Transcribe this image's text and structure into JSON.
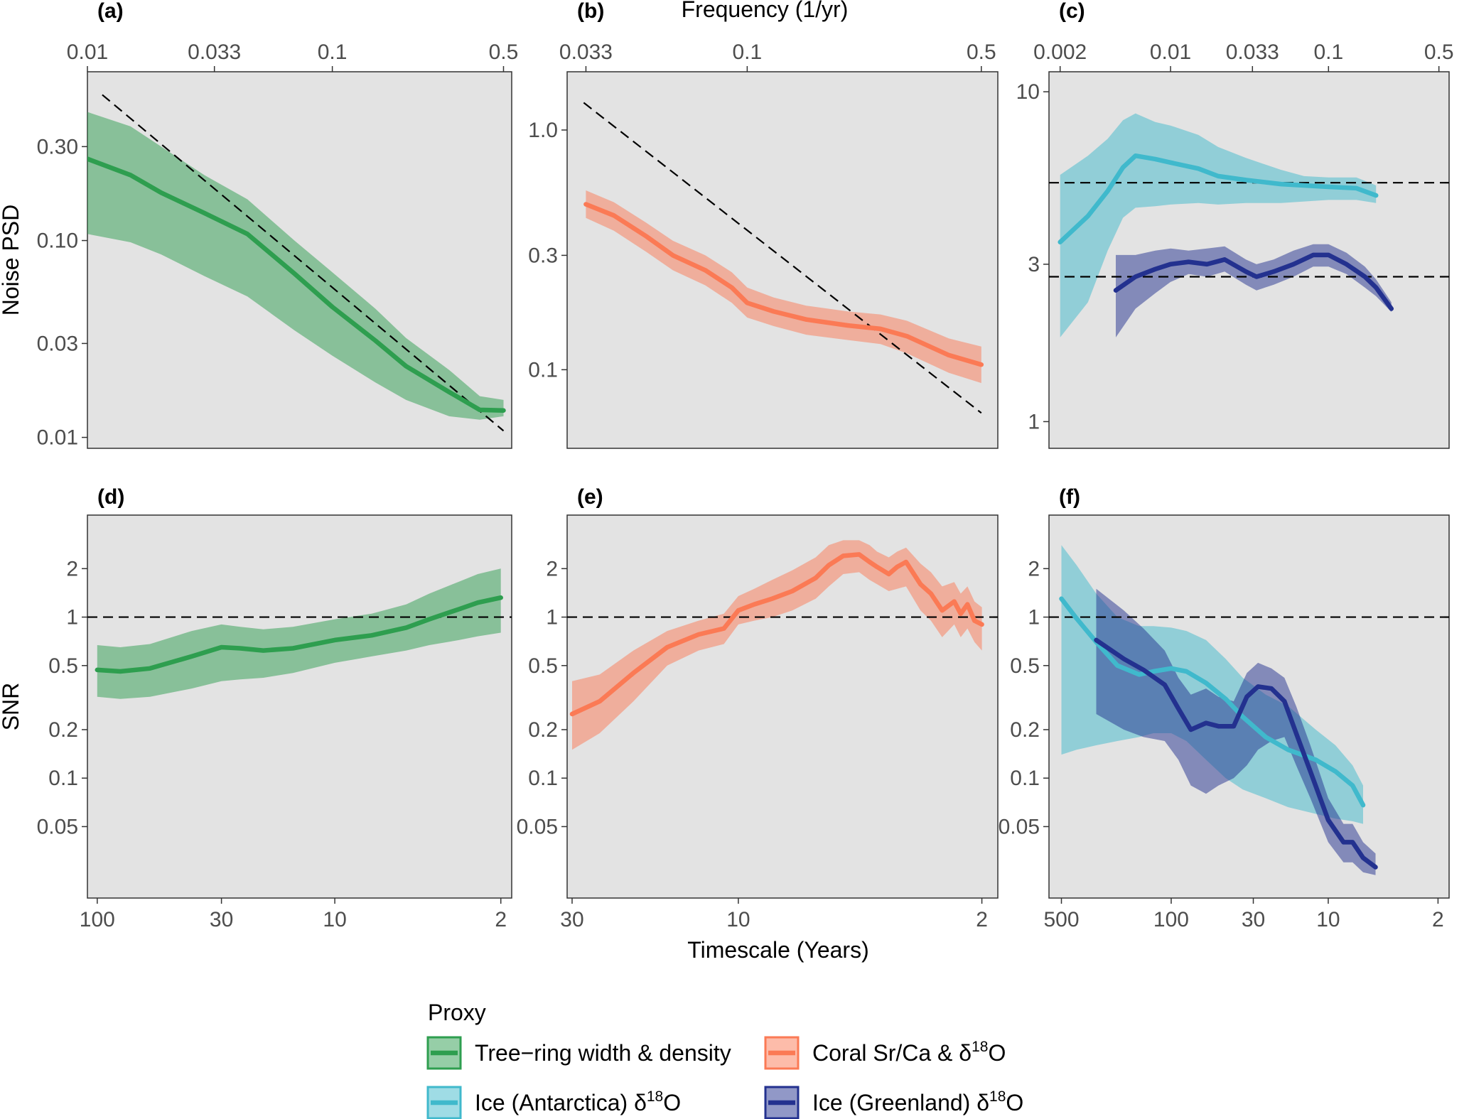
{
  "chart_data": {
    "type": "line",
    "top_axis_title": "Frequency (1/yr)",
    "bottom_axis_title": "Timescale (Years)",
    "colors": {
      "tree": "#2e9e4f",
      "coral": "#fb7a55",
      "ice_ant": "#40b9cc",
      "ice_gre": "#23318f",
      "panel_bg": "#e3e3e3",
      "reference_line": "#000000"
    },
    "legend": {
      "title": "Proxy",
      "items": [
        {
          "key": "tree",
          "label": "Tree−ring width & density",
          "sup": "",
          "tail": ""
        },
        {
          "key": "coral",
          "label": "Coral Sr/Ca & δ",
          "sup": "18",
          "tail": "O"
        },
        {
          "key": "ice_ant",
          "label": "Ice (Antarctica) δ",
          "sup": "18",
          "tail": "O"
        },
        {
          "key": "ice_gre",
          "label": "Ice (Greenland) δ",
          "sup": "18",
          "tail": "O"
        }
      ]
    },
    "panels": [
      {
        "tag": "(a)",
        "row": 0,
        "col": 0,
        "ylabel": "Noise PSD",
        "x_scale": "log",
        "y_scale": "log",
        "xlim": [
          0.01,
          0.54
        ],
        "ylim": [
          0.0088,
          0.72
        ],
        "x_ticks": [
          0.01,
          0.033,
          0.1,
          0.5
        ],
        "x_tick_labels": [
          "0.01",
          "0.033",
          "0.1",
          "0.5"
        ],
        "y_ticks": [
          0.3,
          0.1,
          0.03,
          0.01
        ],
        "y_tick_labels": [
          "0.30",
          "0.10",
          "0.03",
          "0.01"
        ],
        "reference_lines": [
          {
            "kind": "segment",
            "x": [
              0.0115,
              0.5
            ],
            "y": [
              0.55,
              0.0108
            ]
          }
        ],
        "series": [
          {
            "key": "tree",
            "x": [
              0.01,
              0.015,
              0.02,
              0.03,
              0.045,
              0.07,
              0.1,
              0.15,
              0.2,
              0.3,
              0.4,
              0.5
            ],
            "y": [
              0.26,
              0.215,
              0.175,
              0.138,
              0.108,
              0.068,
              0.046,
              0.031,
              0.023,
              0.017,
              0.0138,
              0.0137
            ],
            "lo": [
              0.108,
              0.098,
              0.085,
              0.066,
              0.052,
              0.035,
              0.026,
              0.019,
              0.0155,
              0.0128,
              0.0123,
              0.0128
            ],
            "hi": [
              0.45,
              0.38,
              0.3,
              0.215,
              0.162,
              0.1,
              0.069,
              0.045,
              0.032,
              0.022,
              0.0162,
              0.0155
            ]
          }
        ]
      },
      {
        "tag": "(b)",
        "row": 0,
        "col": 1,
        "ylabel": "",
        "x_scale": "log",
        "y_scale": "log",
        "xlim": [
          0.029,
          0.56
        ],
        "ylim": [
          0.047,
          1.75
        ],
        "x_ticks": [
          0.033,
          0.1,
          0.5
        ],
        "x_tick_labels": [
          "0.033",
          "0.1",
          "0.5"
        ],
        "y_ticks": [
          1.0,
          0.3,
          0.1
        ],
        "y_tick_labels": [
          "1.0",
          "0.3",
          "0.1"
        ],
        "reference_lines": [
          {
            "kind": "segment",
            "x": [
              0.0325,
              0.5
            ],
            "y": [
              1.3,
              0.066
            ]
          }
        ],
        "series": [
          {
            "key": "coral",
            "x": [
              0.033,
              0.04,
              0.05,
              0.06,
              0.075,
              0.09,
              0.1,
              0.12,
              0.15,
              0.2,
              0.25,
              0.3,
              0.4,
              0.5
            ],
            "y": [
              0.49,
              0.44,
              0.36,
              0.3,
              0.26,
              0.22,
              0.19,
              0.175,
              0.162,
              0.153,
              0.148,
              0.138,
              0.115,
              0.105
            ],
            "lo": [
              0.43,
              0.38,
              0.31,
              0.26,
              0.225,
              0.19,
              0.165,
              0.152,
              0.14,
              0.133,
              0.128,
              0.117,
              0.097,
              0.088
            ],
            "hi": [
              0.56,
              0.5,
              0.41,
              0.345,
              0.3,
              0.255,
              0.22,
              0.2,
              0.185,
              0.175,
              0.17,
              0.16,
              0.135,
              0.125
            ]
          }
        ]
      },
      {
        "tag": "(c)",
        "row": 0,
        "col": 2,
        "ylabel": "",
        "x_scale": "log",
        "y_scale": "log",
        "xlim": [
          0.0017,
          0.58
        ],
        "ylim": [
          0.83,
          11.5
        ],
        "x_ticks": [
          0.002,
          0.01,
          0.033,
          0.1,
          0.5
        ],
        "x_tick_labels": [
          "0.002",
          "0.01",
          "0.033",
          "0.1",
          "0.5"
        ],
        "y_ticks": [
          10,
          3,
          1
        ],
        "y_tick_labels": [
          "10",
          "3",
          "1"
        ],
        "reference_lines": [
          {
            "kind": "hline",
            "y": 5.3
          },
          {
            "kind": "hline",
            "y": 2.75
          }
        ],
        "series": [
          {
            "key": "ice_ant",
            "x": [
              0.002,
              0.003,
              0.004,
              0.005,
              0.006,
              0.008,
              0.01,
              0.015,
              0.02,
              0.03,
              0.05,
              0.07,
              0.1,
              0.15,
              0.2
            ],
            "y": [
              3.5,
              4.2,
              5.0,
              5.9,
              6.4,
              6.25,
              6.1,
              5.85,
              5.55,
              5.4,
              5.25,
              5.2,
              5.15,
              5.1,
              4.85
            ],
            "lo": [
              1.8,
              2.3,
              3.3,
              4.15,
              4.45,
              4.5,
              4.55,
              4.6,
              4.55,
              4.6,
              4.6,
              4.65,
              4.7,
              4.7,
              4.6
            ],
            "hi": [
              5.6,
              6.4,
              7.2,
              8.2,
              8.6,
              8.1,
              7.9,
              7.4,
              6.8,
              6.3,
              5.8,
              5.55,
              5.5,
              5.5,
              5.2
            ]
          },
          {
            "key": "ice_gre",
            "x": [
              0.0045,
              0.006,
              0.008,
              0.01,
              0.013,
              0.017,
              0.022,
              0.03,
              0.035,
              0.045,
              0.06,
              0.08,
              0.1,
              0.13,
              0.17,
              0.2,
              0.25
            ],
            "y": [
              2.5,
              2.75,
              2.9,
              3.0,
              3.05,
              3.0,
              3.1,
              2.85,
              2.75,
              2.85,
              3.0,
              3.2,
              3.2,
              3.0,
              2.75,
              2.55,
              2.2
            ],
            "lo": [
              1.8,
              2.2,
              2.45,
              2.65,
              2.8,
              2.75,
              2.85,
              2.6,
              2.5,
              2.6,
              2.75,
              2.95,
              2.95,
              2.8,
              2.55,
              2.4,
              2.15
            ],
            "hi": [
              3.2,
              3.2,
              3.3,
              3.35,
              3.3,
              3.35,
              3.4,
              3.1,
              3.0,
              3.1,
              3.3,
              3.45,
              3.45,
              3.25,
              2.95,
              2.7,
              2.3
            ]
          }
        ]
      },
      {
        "tag": "(d)",
        "row": 1,
        "col": 0,
        "ylabel": "SNR",
        "x_scale": "log_reversed",
        "y_scale": "log",
        "xlim": [
          110,
          1.8
        ],
        "ylim": [
          0.018,
          4.3
        ],
        "x_ticks": [
          100,
          30,
          10,
          2
        ],
        "x_tick_labels": [
          "100",
          "30",
          "10",
          "2"
        ],
        "y_ticks": [
          2,
          1,
          0.5,
          0.2,
          0.1,
          0.05
        ],
        "y_tick_labels": [
          "2",
          "1",
          "0.5",
          "0.2",
          "0.1",
          "0.05"
        ],
        "reference_lines": [
          {
            "kind": "hline",
            "y": 1
          }
        ],
        "series": [
          {
            "key": "tree",
            "x": [
              100,
              80,
              60,
              40,
              30,
              25,
              20,
              15,
              10,
              7,
              5,
              4,
              3,
              2.5,
              2
            ],
            "y": [
              0.47,
              0.46,
              0.48,
              0.57,
              0.65,
              0.64,
              0.62,
              0.64,
              0.72,
              0.77,
              0.86,
              0.97,
              1.12,
              1.23,
              1.32
            ],
            "lo": [
              0.32,
              0.31,
              0.32,
              0.36,
              0.4,
              0.41,
              0.42,
              0.45,
              0.52,
              0.57,
              0.62,
              0.67,
              0.72,
              0.76,
              0.8
            ],
            "hi": [
              0.67,
              0.65,
              0.68,
              0.82,
              0.9,
              0.87,
              0.84,
              0.87,
              0.97,
              1.05,
              1.2,
              1.4,
              1.66,
              1.85,
              2.0
            ]
          }
        ]
      },
      {
        "tag": "(e)",
        "row": 1,
        "col": 1,
        "ylabel": "",
        "x_scale": "log_reversed",
        "y_scale": "log",
        "xlim": [
          31,
          1.8
        ],
        "ylim": [
          0.018,
          4.3
        ],
        "x_ticks": [
          30,
          10,
          2
        ],
        "x_tick_labels": [
          "30",
          "10",
          "2"
        ],
        "y_ticks": [
          2,
          1,
          0.5,
          0.2,
          0.1,
          0.05
        ],
        "y_tick_labels": [
          "2",
          "1",
          "0.5",
          "0.2",
          "0.1",
          "0.05"
        ],
        "reference_lines": [
          {
            "kind": "hline",
            "y": 1
          }
        ],
        "series": [
          {
            "key": "coral",
            "x": [
              30,
              25,
              20,
              16,
              13,
              11,
              10,
              9,
              8,
              7,
              6,
              5.5,
              5,
              4.5,
              4.2,
              4,
              3.7,
              3.5,
              3.3,
              3,
              2.8,
              2.6,
              2.4,
              2.3,
              2.2,
              2.1,
              2
            ],
            "y": [
              0.25,
              0.3,
              0.45,
              0.65,
              0.78,
              0.85,
              1.1,
              1.2,
              1.3,
              1.45,
              1.75,
              2.1,
              2.4,
              2.45,
              2.2,
              2.05,
              1.85,
              2.05,
              2.2,
              1.6,
              1.4,
              1.1,
              1.25,
              1.05,
              1.2,
              0.95,
              0.9
            ],
            "lo": [
              0.15,
              0.19,
              0.3,
              0.5,
              0.62,
              0.68,
              0.9,
              0.95,
              1.0,
              1.1,
              1.3,
              1.55,
              1.85,
              1.9,
              1.7,
              1.6,
              1.45,
              1.5,
              1.55,
              1.1,
              0.95,
              0.75,
              0.9,
              0.75,
              0.85,
              0.7,
              0.62
            ],
            "hi": [
              0.4,
              0.44,
              0.62,
              0.82,
              0.95,
              1.05,
              1.35,
              1.5,
              1.7,
              1.95,
              2.35,
              2.8,
              3.0,
              3.0,
              2.8,
              2.55,
              2.35,
              2.55,
              2.7,
              2.15,
              1.9,
              1.55,
              1.65,
              1.4,
              1.55,
              1.25,
              1.15
            ]
          }
        ]
      },
      {
        "tag": "(f)",
        "row": 1,
        "col": 2,
        "ylabel": "",
        "x_scale": "log_reversed",
        "y_scale": "log",
        "xlim": [
          600,
          1.7
        ],
        "ylim": [
          0.018,
          4.3
        ],
        "x_ticks": [
          500,
          100,
          30,
          10,
          2
        ],
        "x_tick_labels": [
          "500",
          "100",
          "30",
          "10",
          "2"
        ],
        "y_ticks": [
          2,
          1,
          0.5,
          0.2,
          0.1,
          0.05
        ],
        "y_tick_labels": [
          "2",
          "1",
          "0.5",
          "0.2",
          "0.1",
          "0.05"
        ],
        "reference_lines": [
          {
            "kind": "hline",
            "y": 1
          }
        ],
        "series": [
          {
            "key": "ice_ant",
            "x": [
              500,
              400,
              300,
              220,
              160,
              130,
              100,
              80,
              60,
              45,
              35,
              25,
              18,
              12,
              9,
              7,
              6
            ],
            "y": [
              1.3,
              0.98,
              0.7,
              0.5,
              0.44,
              0.46,
              0.48,
              0.46,
              0.39,
              0.31,
              0.24,
              0.18,
              0.15,
              0.13,
              0.11,
              0.09,
              0.068
            ],
            "lo": [
              0.14,
              0.15,
              0.16,
              0.17,
              0.18,
              0.19,
              0.19,
              0.17,
              0.13,
              0.1,
              0.085,
              0.075,
              0.066,
              0.06,
              0.056,
              0.054,
              0.052
            ],
            "hi": [
              2.8,
              2.1,
              1.4,
              1.0,
              0.88,
              0.88,
              0.86,
              0.82,
              0.72,
              0.55,
              0.42,
              0.33,
              0.28,
              0.2,
              0.16,
              0.12,
              0.09
            ]
          },
          {
            "key": "ice_gre",
            "x": [
              300,
              200,
              150,
              110,
              90,
              75,
              60,
              50,
              40,
              33,
              28,
              23,
              19,
              16,
              13,
              10,
              8,
              7,
              6,
              5
            ],
            "y": [
              0.72,
              0.55,
              0.47,
              0.38,
              0.27,
              0.2,
              0.22,
              0.21,
              0.21,
              0.32,
              0.37,
              0.36,
              0.3,
              0.19,
              0.11,
              0.055,
              0.04,
              0.04,
              0.032,
              0.028
            ],
            "lo": [
              0.25,
              0.2,
              0.18,
              0.17,
              0.13,
              0.09,
              0.08,
              0.09,
              0.1,
              0.12,
              0.15,
              0.17,
              0.18,
              0.12,
              0.075,
              0.04,
              0.03,
              0.03,
              0.026,
              0.025
            ],
            "hi": [
              1.5,
              1.1,
              0.85,
              0.62,
              0.42,
              0.33,
              0.36,
              0.32,
              0.3,
              0.45,
              0.52,
              0.48,
              0.42,
              0.28,
              0.16,
              0.075,
              0.052,
              0.052,
              0.04,
              0.034
            ]
          }
        ]
      }
    ]
  }
}
